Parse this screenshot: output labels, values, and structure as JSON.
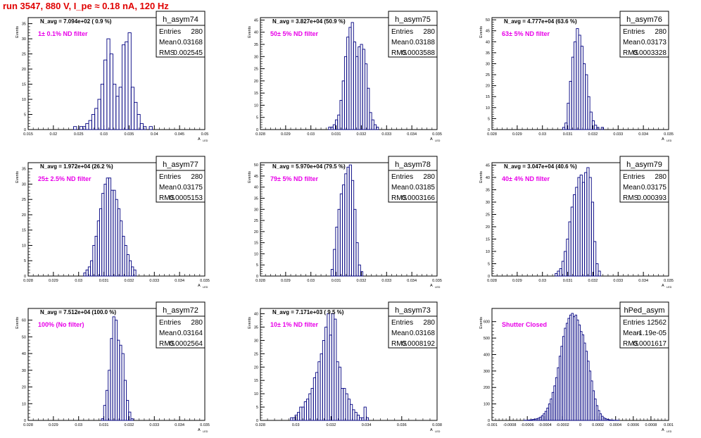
{
  "header": {
    "run_title": "run 3547,   880 V, I_pe ≈ 0.18 nA, 120 Hz"
  },
  "style": {
    "hist_color": "#000080",
    "note_color": "#e800e8",
    "title_color": "#e00000"
  },
  "chart_data": [
    {
      "type": "bar",
      "name": "h_asym74",
      "ylabel": "Events",
      "xlabel": "A_{LED}",
      "navg": "N_avg = 7.094e+02 ( 0.9 %)",
      "note": "1± 0.1% ND filter",
      "stats": {
        "entries": "280",
        "mean": "0.03168",
        "rms": "0.002545"
      },
      "xlim": [
        0.015,
        0.05
      ],
      "ylim": [
        0,
        37
      ],
      "xticks": [
        "0.015",
        "0.02",
        "0.025",
        "0.03",
        "0.035",
        "0.04",
        "0.045",
        "0.05"
      ],
      "yticks": [
        "0",
        "5",
        "10",
        "15",
        "20",
        "25",
        "30",
        "35"
      ],
      "bins": {
        "start": 0.024,
        "width": 0.0006,
        "values": [
          1,
          0,
          1,
          1,
          2,
          3,
          5,
          7,
          10,
          15,
          23,
          30,
          25,
          15,
          11,
          14,
          28,
          29,
          32,
          14,
          9,
          5,
          2,
          1,
          0,
          1
        ]
      }
    },
    {
      "type": "bar",
      "name": "h_asym75",
      "ylabel": "Events",
      "xlabel": "A_{LED}",
      "navg": "N_avg = 3.827e+04 (50.9 %)",
      "note": "50± 5% ND filter",
      "stats": {
        "entries": "280",
        "mean": "0.03188",
        "rms": "0.0003588"
      },
      "xlim": [
        0.028,
        0.035
      ],
      "ylim": [
        0,
        46
      ],
      "xticks": [
        "0.028",
        "0.029",
        "0.03",
        "0.031",
        "0.032",
        "0.033",
        "0.034",
        "0.035"
      ],
      "yticks": [
        "0",
        "5",
        "10",
        "15",
        "20",
        "25",
        "30",
        "35",
        "40",
        "45"
      ],
      "bins": {
        "start": 0.0307,
        "width": 9e-05,
        "values": [
          1,
          1,
          2,
          4,
          6,
          12,
          20,
          30,
          38,
          42,
          44,
          36,
          30,
          34,
          35,
          33,
          27,
          17,
          7,
          4,
          2,
          1
        ]
      }
    },
    {
      "type": "bar",
      "name": "h_asym76",
      "ylabel": "Events",
      "xlabel": "A_{LED}",
      "navg": "N_avg = 4.777e+04 (63.6 %)",
      "note": "63± 5% ND filter",
      "stats": {
        "entries": "280",
        "mean": "0.03173",
        "rms": "0.0003328"
      },
      "xlim": [
        0.028,
        0.035
      ],
      "ylim": [
        0,
        51
      ],
      "xticks": [
        "0.028",
        "0.029",
        "0.03",
        "0.031",
        "0.032",
        "0.033",
        "0.034",
        "0.035"
      ],
      "yticks": [
        "0",
        "5",
        "10",
        "15",
        "20",
        "25",
        "30",
        "35",
        "40",
        "45",
        "50"
      ],
      "bins": {
        "start": 0.0308,
        "width": 9e-05,
        "values": [
          1,
          3,
          12,
          22,
          33,
          40,
          46,
          43,
          38,
          30,
          25,
          15,
          8,
          4,
          2,
          1,
          0,
          1
        ]
      }
    },
    {
      "type": "bar",
      "name": "h_asym77",
      "ylabel": "Events",
      "xlabel": "A_{LED}",
      "navg": "N_avg = 1.972e+04 (26.2 %)",
      "note": "25± 2.5% ND filter",
      "stats": {
        "entries": "280",
        "mean": "0.03175",
        "rms": "0.0005153"
      },
      "xlim": [
        0.028,
        0.035
      ],
      "ylim": [
        0,
        37
      ],
      "xticks": [
        "0.028",
        "0.029",
        "0.03",
        "0.031",
        "0.032",
        "0.033",
        "0.034",
        "0.035"
      ],
      "yticks": [
        "0",
        "5",
        "10",
        "15",
        "20",
        "25",
        "30",
        "35"
      ],
      "bins": {
        "start": 0.0302,
        "width": 9e-05,
        "values": [
          1,
          2,
          3,
          5,
          10,
          13,
          18,
          22,
          27,
          30,
          32,
          32,
          28,
          28,
          25,
          22,
          18,
          13,
          10,
          7,
          5,
          3,
          2
        ]
      }
    },
    {
      "type": "bar",
      "name": "h_asym78",
      "ylabel": "Events",
      "xlabel": "A_{LED}",
      "navg": "N_avg = 5.970e+04 (79.5 %)",
      "note": "79± 5% ND filter",
      "stats": {
        "entries": "280",
        "mean": "0.03185",
        "rms": "0.0003166"
      },
      "xlim": [
        0.028,
        0.035
      ],
      "ylim": [
        0,
        51
      ],
      "xticks": [
        "0.028",
        "0.029",
        "0.03",
        "0.031",
        "0.032",
        "0.033",
        "0.034",
        "0.035"
      ],
      "yticks": [
        "0",
        "5",
        "10",
        "15",
        "20",
        "25",
        "30",
        "35",
        "40",
        "45",
        "50"
      ],
      "bins": {
        "start": 0.0308,
        "width": 9e-05,
        "values": [
          3,
          12,
          22,
          30,
          37,
          41,
          46,
          49,
          50,
          43,
          30,
          15,
          5,
          2
        ]
      }
    },
    {
      "type": "bar",
      "name": "h_asym79",
      "ylabel": "Events",
      "xlabel": "A_{LED}",
      "navg": "N_avg = 3.047e+04 (40.6 %)",
      "note": "40± 4% ND filter",
      "stats": {
        "entries": "280",
        "mean": "0.03175",
        "rms": "0.000393"
      },
      "xlim": [
        0.028,
        0.035
      ],
      "ylim": [
        0,
        46
      ],
      "xticks": [
        "0.028",
        "0.029",
        "0.03",
        "0.031",
        "0.032",
        "0.033",
        "0.034",
        "0.035"
      ],
      "yticks": [
        "0",
        "5",
        "10",
        "15",
        "20",
        "25",
        "30",
        "35",
        "40",
        "45"
      ],
      "bins": {
        "start": 0.0305,
        "width": 9e-05,
        "values": [
          1,
          2,
          3,
          6,
          10,
          15,
          22,
          28,
          33,
          36,
          40,
          41,
          38,
          42,
          44,
          40,
          30,
          14,
          5,
          2
        ]
      }
    },
    {
      "type": "bar",
      "name": "h_asym72",
      "ylabel": "Events",
      "xlabel": "A_{LED}",
      "navg": "N_avg = 7.512e+04 (100.0 %)",
      "note": "100% (No filter)",
      "stats": {
        "entries": "280",
        "mean": "0.03164",
        "rms": "0.0002564"
      },
      "xlim": [
        0.028,
        0.035
      ],
      "ylim": [
        0,
        67
      ],
      "xticks": [
        "0.028",
        "0.029",
        "0.03",
        "0.031",
        "0.032",
        "0.033",
        "0.034",
        "0.035"
      ],
      "yticks": [
        "0",
        "10",
        "20",
        "30",
        "40",
        "50",
        "60"
      ],
      "bins": {
        "start": 0.0309,
        "width": 9e-05,
        "values": [
          1,
          9,
          18,
          30,
          49,
          62,
          60,
          48,
          45,
          40,
          24,
          12,
          5,
          1
        ]
      }
    },
    {
      "type": "bar",
      "name": "h_asym73",
      "ylabel": "Events",
      "xlabel": "A_{LED}",
      "navg": "N_avg = 7.171e+03 ( 9.5 %)",
      "note": "10± 1% ND filter",
      "stats": {
        "entries": "280",
        "mean": "0.03168",
        "rms": "0.0008192"
      },
      "xlim": [
        0.028,
        0.038
      ],
      "ylim": [
        0,
        42
      ],
      "xticks": [
        "0.028",
        "0.03",
        "0.032",
        "0.034",
        "0.036",
        "0.038"
      ],
      "yticks": [
        "0",
        "5",
        "10",
        "15",
        "20",
        "25",
        "30",
        "35",
        "40"
      ],
      "bins": {
        "start": 0.0297,
        "width": 0.00013,
        "values": [
          1,
          1,
          2,
          3,
          5,
          5,
          7,
          8,
          10,
          12,
          16,
          18,
          22,
          25,
          30,
          35,
          40,
          32,
          40,
          38,
          22,
          20,
          12,
          12,
          10,
          8,
          6,
          4,
          3,
          2,
          1,
          1,
          5,
          1
        ]
      }
    },
    {
      "type": "bar",
      "name": "hPed_asym",
      "ylabel": "Events",
      "xlabel": "A_{LED}",
      "navg": "",
      "note": "Shutter Closed",
      "stats": {
        "entries": "12562",
        "mean": "-1.19e-05",
        "rms": "0.0001617"
      },
      "xlim": [
        -0.001,
        0.001
      ],
      "ylim": [
        0,
        680
      ],
      "xticks": [
        "-0.001",
        "-0.0008",
        "-0.0006",
        "-0.0004",
        "-0.0002",
        "0",
        "0.0002",
        "0.0004",
        "0.0006",
        "0.0008",
        "0.001"
      ],
      "yticks": [
        "0",
        "100",
        "200",
        "300",
        "400",
        "500",
        "600"
      ],
      "bins": {
        "start": -0.00064,
        "width": 2e-05,
        "values": [
          1,
          1,
          2,
          3,
          4,
          6,
          8,
          10,
          14,
          20,
          28,
          40,
          55,
          75,
          100,
          130,
          170,
          210,
          260,
          320,
          390,
          450,
          510,
          560,
          590,
          620,
          640,
          650,
          630,
          640,
          610,
          580,
          540,
          520,
          470,
          420,
          360,
          300,
          240,
          180,
          130,
          90,
          60,
          40,
          25,
          15,
          10,
          6,
          4,
          2,
          2,
          1,
          1,
          1
        ]
      }
    }
  ]
}
